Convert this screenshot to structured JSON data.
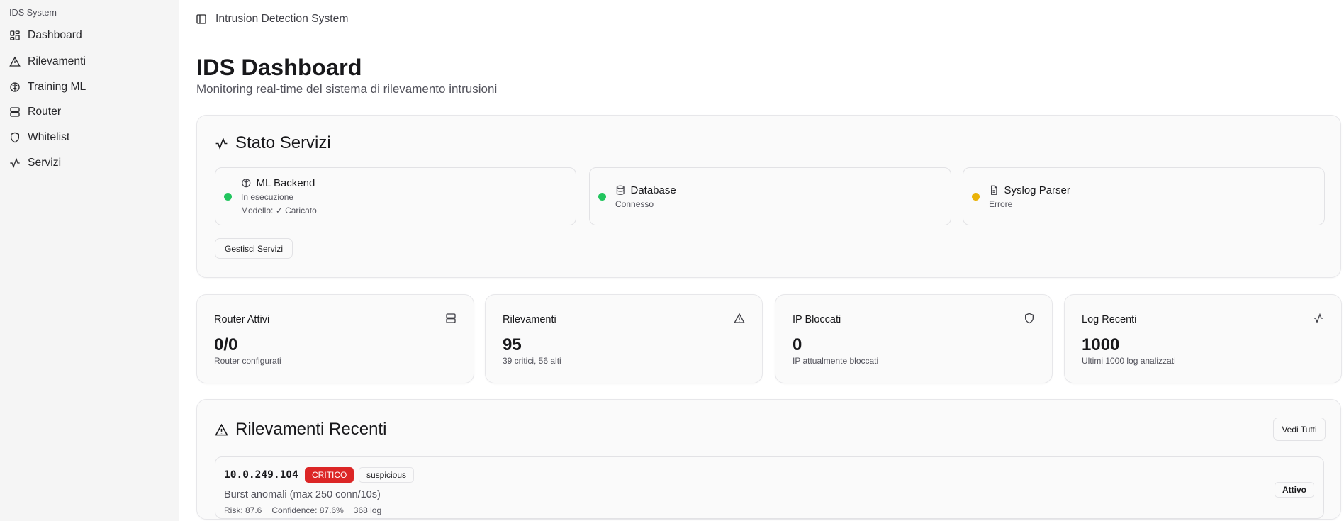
{
  "sidebar": {
    "brand": "IDS System",
    "items": [
      {
        "label": "Dashboard",
        "icon": "dashboard-grid-icon"
      },
      {
        "label": "Rilevamenti",
        "icon": "warning-triangle-icon"
      },
      {
        "label": "Training ML",
        "icon": "brain-icon"
      },
      {
        "label": "Router",
        "icon": "server-icon"
      },
      {
        "label": "Whitelist",
        "icon": "shield-icon"
      },
      {
        "label": "Servizi",
        "icon": "activity-icon"
      }
    ]
  },
  "header": {
    "title": "Intrusion Detection System",
    "toggle_icon": "sidebar-toggle-icon"
  },
  "page": {
    "title": "IDS Dashboard",
    "subtitle": "Monitoring real-time del sistema di rilevamento intrusioni"
  },
  "services": {
    "title": "Stato Servizi",
    "manage_label": "Gestisci Servizi",
    "items": [
      {
        "name": "ML Backend",
        "status": "In esecuzione",
        "extra": "Modello: ✓ Caricato",
        "color": "#22c55e"
      },
      {
        "name": "Database",
        "status": "Connesso",
        "color": "#22c55e"
      },
      {
        "name": "Syslog Parser",
        "status": "Errore",
        "color": "#eab308"
      }
    ]
  },
  "stats": [
    {
      "label": "Router Attivi",
      "value": "0/0",
      "desc": "Router configurati"
    },
    {
      "label": "Rilevamenti",
      "value": "95",
      "desc": "39 critici, 56 alti"
    },
    {
      "label": "IP Bloccati",
      "value": "0",
      "desc": "IP attualmente bloccati"
    },
    {
      "label": "Log Recenti",
      "value": "1000",
      "desc": "Ultimi 1000 log analizzati"
    }
  ],
  "recent": {
    "title": "Rilevamenti Recenti",
    "view_all": "Vedi Tutti",
    "items": [
      {
        "ip": "10.0.249.104",
        "severity": "CRITICO",
        "severity_color": "#dc2626",
        "type": "suspicious",
        "reason": "Burst anomali (max 250 conn/10s)",
        "risk": "Risk: 87.6",
        "confidence": "Confidence: 87.6%",
        "logs": "368 log",
        "status": "Attivo"
      }
    ]
  }
}
